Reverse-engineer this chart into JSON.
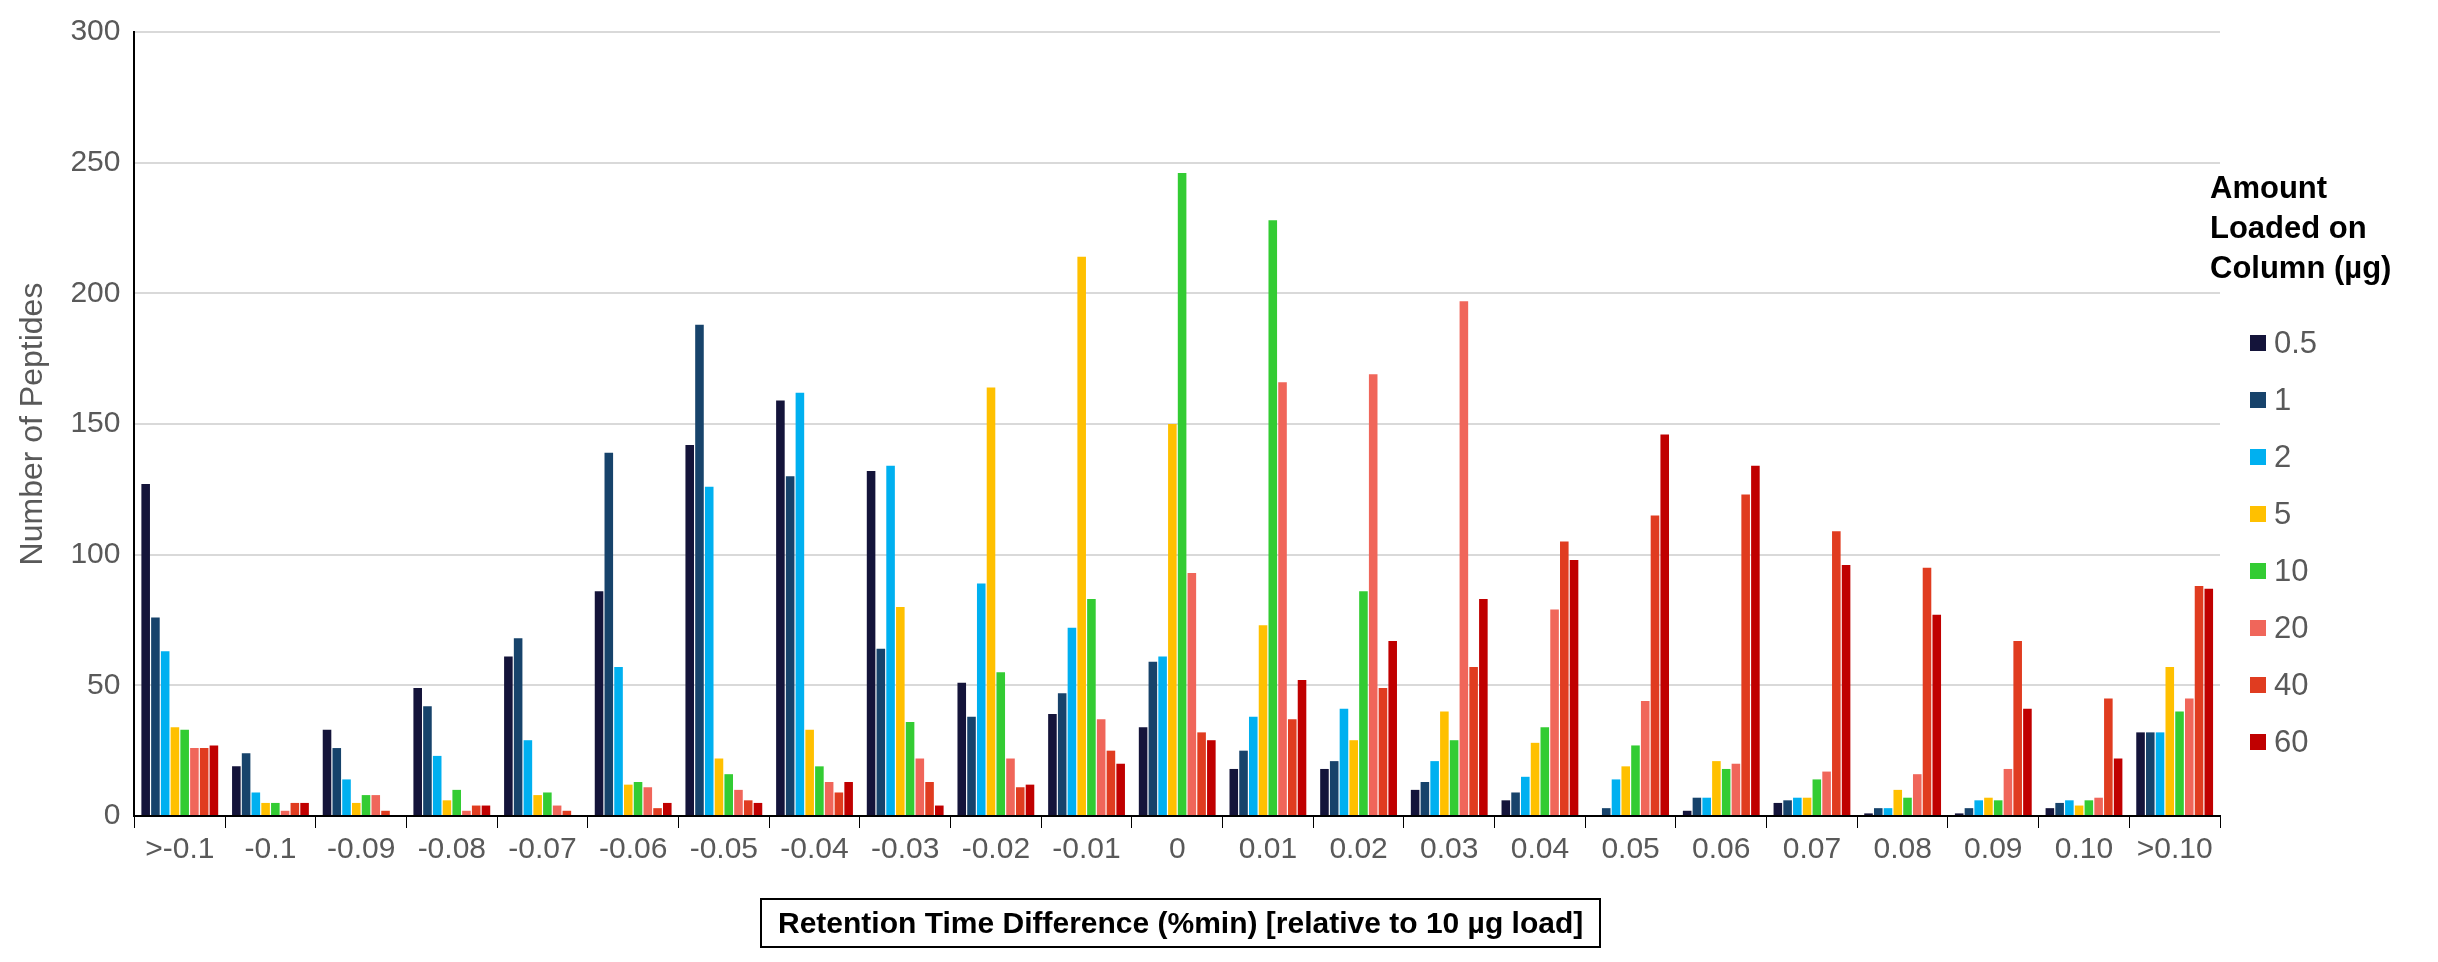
{
  "chart_data": {
    "type": "bar",
    "xlabel": "Retention Time Difference (%min) [relative to 10 µg load]",
    "ylabel": "Number of Peptides",
    "legend_title": "Amount Loaded on Column (µg)",
    "categories": [
      ">-0.1",
      "-0.1",
      "-0.09",
      "-0.08",
      "-0.07",
      "-0.06",
      "-0.05",
      "-0.04",
      "-0.03",
      "-0.02",
      "-0.01",
      "0",
      "0.01",
      "0.02",
      "0.03",
      "0.04",
      "0.05",
      "0.06",
      "0.07",
      "0.08",
      "0.09",
      "0.10",
      ">0.10"
    ],
    "series": [
      {
        "name": "0.5",
        "color": "#14143a",
        "values": [
          127,
          19,
          33,
          49,
          61,
          86,
          142,
          159,
          132,
          51,
          39,
          34,
          18,
          18,
          10,
          6,
          0,
          2,
          5,
          1,
          1,
          3,
          32
        ]
      },
      {
        "name": "1",
        "color": "#17436b",
        "values": [
          76,
          24,
          26,
          42,
          68,
          139,
          188,
          130,
          64,
          38,
          47,
          59,
          25,
          21,
          13,
          9,
          3,
          7,
          6,
          3,
          3,
          5,
          32
        ]
      },
      {
        "name": "2",
        "color": "#00b0f0",
        "values": [
          63,
          9,
          14,
          23,
          29,
          57,
          126,
          162,
          134,
          89,
          72,
          61,
          38,
          41,
          21,
          15,
          14,
          7,
          7,
          3,
          6,
          6,
          32
        ]
      },
      {
        "name": "5",
        "color": "#ffc000",
        "values": [
          34,
          5,
          5,
          6,
          8,
          12,
          22,
          33,
          80,
          164,
          214,
          150,
          73,
          29,
          40,
          28,
          19,
          21,
          7,
          10,
          7,
          4,
          57
        ]
      },
      {
        "name": "10",
        "color": "#33cc33",
        "values": [
          33,
          5,
          8,
          10,
          9,
          13,
          16,
          19,
          36,
          55,
          83,
          246,
          228,
          86,
          29,
          34,
          27,
          18,
          14,
          7,
          6,
          6,
          40
        ]
      },
      {
        "name": "20",
        "color": "#f0665a",
        "values": [
          26,
          2,
          8,
          2,
          4,
          11,
          10,
          13,
          22,
          22,
          37,
          93,
          166,
          169,
          197,
          79,
          44,
          20,
          17,
          16,
          18,
          7,
          45
        ]
      },
      {
        "name": "40",
        "color": "#e03c20",
        "values": [
          26,
          5,
          2,
          4,
          2,
          3,
          6,
          9,
          13,
          11,
          25,
          32,
          37,
          49,
          57,
          105,
          115,
          123,
          109,
          95,
          67,
          45,
          88
        ]
      },
      {
        "name": "60",
        "color": "#c00000",
        "values": [
          27,
          5,
          0,
          4,
          0,
          5,
          5,
          13,
          4,
          12,
          20,
          29,
          52,
          67,
          83,
          98,
          146,
          134,
          96,
          77,
          41,
          22,
          87
        ]
      }
    ],
    "ylim": [
      0,
      300
    ],
    "yticks": [
      0,
      50,
      100,
      150,
      200,
      250,
      300
    ],
    "grid": "y",
    "legend": "right"
  }
}
